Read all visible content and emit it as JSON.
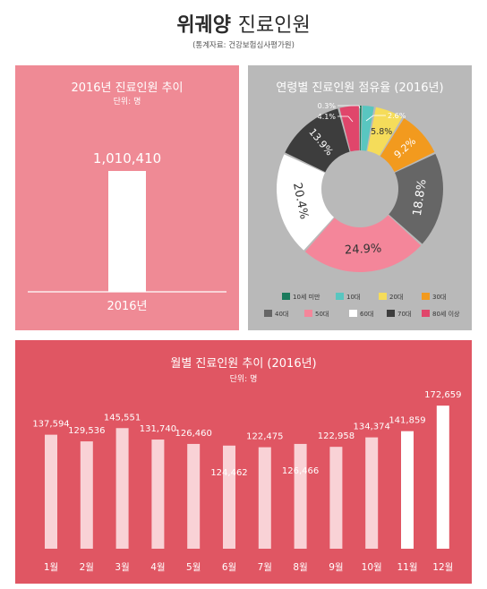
{
  "header": {
    "title_bold": "위궤양",
    "title_light": "진료인원",
    "source": "(통계자료: 건강보험심사평가원)"
  },
  "left_panel": {
    "title": "2016년 진료인원 추이",
    "unit": "단위: 명"
  },
  "right_panel": {
    "title": "연령별 진료인원 점유율 (2016년)"
  },
  "bottom_panel": {
    "title": "월별 진료인원 추이 (2016년)",
    "unit": "단위: 명"
  },
  "colors": {
    "left_bg": "#ef8a95",
    "right_bg": "#b9b9b9",
    "bottom_bg": "#e05663"
  },
  "chart_data": [
    {
      "type": "bar",
      "title": "2016년 진료인원 추이",
      "unit": "단위: 명",
      "categories": [
        "2016년"
      ],
      "values": [
        1010410
      ],
      "value_labels": [
        "1,010,410"
      ]
    },
    {
      "type": "pie",
      "title": "연령별 진료인원 점유율 (2016년)",
      "categories": [
        "10세 미만",
        "10대",
        "20대",
        "30대",
        "40대",
        "50대",
        "60대",
        "70대",
        "80세 이상"
      ],
      "values": [
        0.3,
        2.6,
        5.8,
        9.2,
        18.8,
        24.9,
        20.4,
        13.9,
        4.1
      ],
      "value_labels": [
        "0.3%",
        "2.6%",
        "5.8%",
        "9.2%",
        "18.8%",
        "24.9%",
        "20.4%",
        "13.9%",
        "4.1%"
      ],
      "colors": [
        "#1a7a5c",
        "#59c6c0",
        "#f5dc5a",
        "#f29a1e",
        "#666666",
        "#f4869a",
        "#ffffff",
        "#3d3d3d",
        "#e0466b"
      ],
      "legend_position": "bottom"
    },
    {
      "type": "bar",
      "title": "월별 진료인원 추이 (2016년)",
      "unit": "단위: 명",
      "categories": [
        "1월",
        "2월",
        "3월",
        "4월",
        "5월",
        "6월",
        "7월",
        "8월",
        "9월",
        "10월",
        "11월",
        "12월"
      ],
      "values": [
        137594,
        129536,
        145551,
        131740,
        126460,
        124462,
        122475,
        126466,
        122958,
        134374,
        141859,
        172659
      ],
      "value_labels": [
        "137,594",
        "129,536",
        "145,551",
        "131,740",
        "126,460",
        "124,462",
        "122,475",
        "126,466",
        "122,958",
        "134,374",
        "141,859",
        "172,659"
      ]
    }
  ]
}
